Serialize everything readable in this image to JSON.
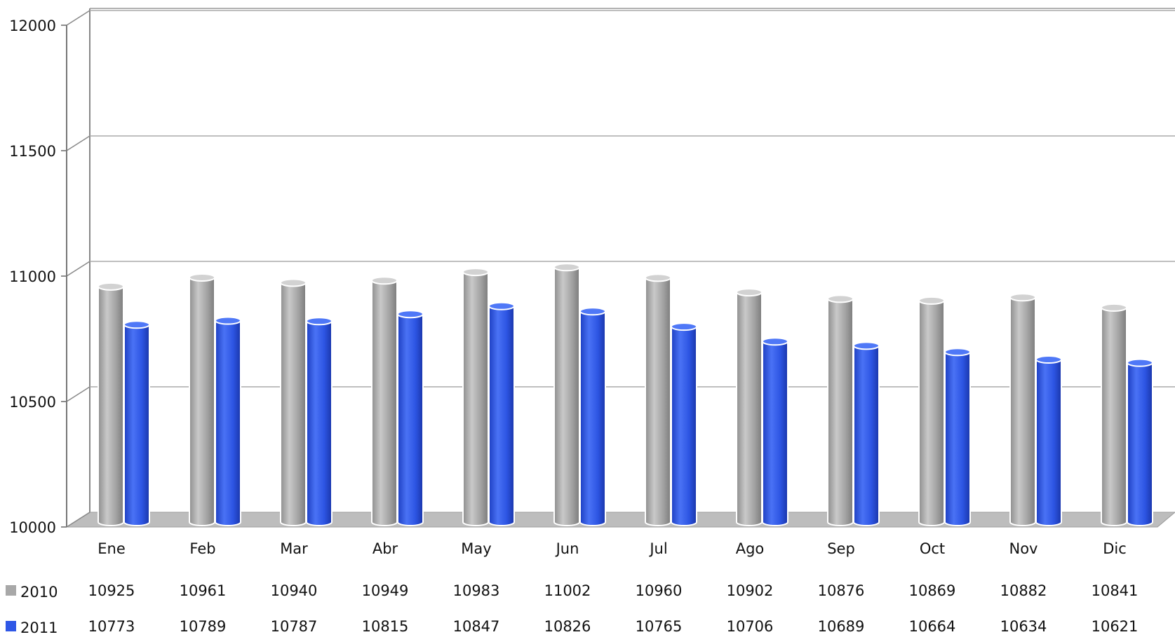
{
  "chart_data": {
    "type": "bar",
    "categories": [
      "Ene",
      "Feb",
      "Mar",
      "Abr",
      "May",
      "Jun",
      "Jul",
      "Ago",
      "Sep",
      "Oct",
      "Nov",
      "Dic"
    ],
    "series": [
      {
        "name": "2010",
        "color": "#a8a8a8",
        "values": [
          10925,
          10961,
          10940,
          10949,
          10983,
          11002,
          10960,
          10902,
          10876,
          10869,
          10882,
          10841
        ]
      },
      {
        "name": "2011",
        "color": "#2f57e6",
        "values": [
          10773,
          10789,
          10787,
          10815,
          10847,
          10826,
          10765,
          10706,
          10689,
          10664,
          10634,
          10621
        ]
      }
    ],
    "title": "",
    "xlabel": "",
    "ylabel": "",
    "ylim": [
      10000,
      12000
    ],
    "yticks": [
      "10000",
      "10500",
      "11000",
      "11500",
      "12000"
    ],
    "grid": true,
    "legend": "bottom-left data table",
    "style": "3d-cylinder"
  }
}
